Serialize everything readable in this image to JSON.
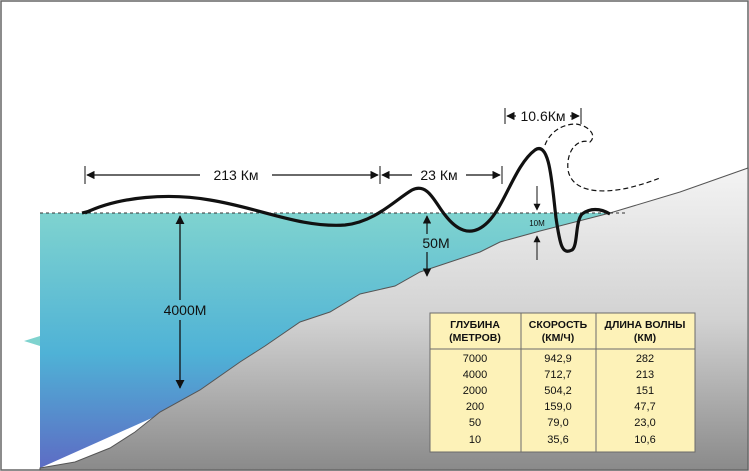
{
  "labels": {
    "span_213": "213 Км",
    "span_23": "23 Км",
    "span_10_6": "10.6Км",
    "depth_4000": "4000М",
    "depth_50": "50М",
    "height_10": "10М"
  },
  "table": {
    "headers": [
      [
        "ГЛУБИНА",
        "(МЕТРОВ)"
      ],
      [
        "СКОРОСТЬ",
        "(КМ/Ч)"
      ],
      [
        "ДЛИНА ВОЛНЫ",
        "(КМ)"
      ]
    ],
    "rows": [
      [
        "7000",
        "942,9",
        "282"
      ],
      [
        "4000",
        "712,7",
        "213"
      ],
      [
        "2000",
        "504,2",
        "151"
      ],
      [
        "200",
        "159,0",
        "47,7"
      ],
      [
        "50",
        "79,0",
        "23,0"
      ],
      [
        "10",
        "35,6",
        "10,6"
      ]
    ]
  },
  "colors": {
    "sky": "#ffffff",
    "water_top": "#7fd3cf",
    "water_bottom": "#5d74c6",
    "land_top": "#f2f2f2",
    "land_bottom": "#8c8c8c",
    "table_bg": "#fdf2b8"
  }
}
